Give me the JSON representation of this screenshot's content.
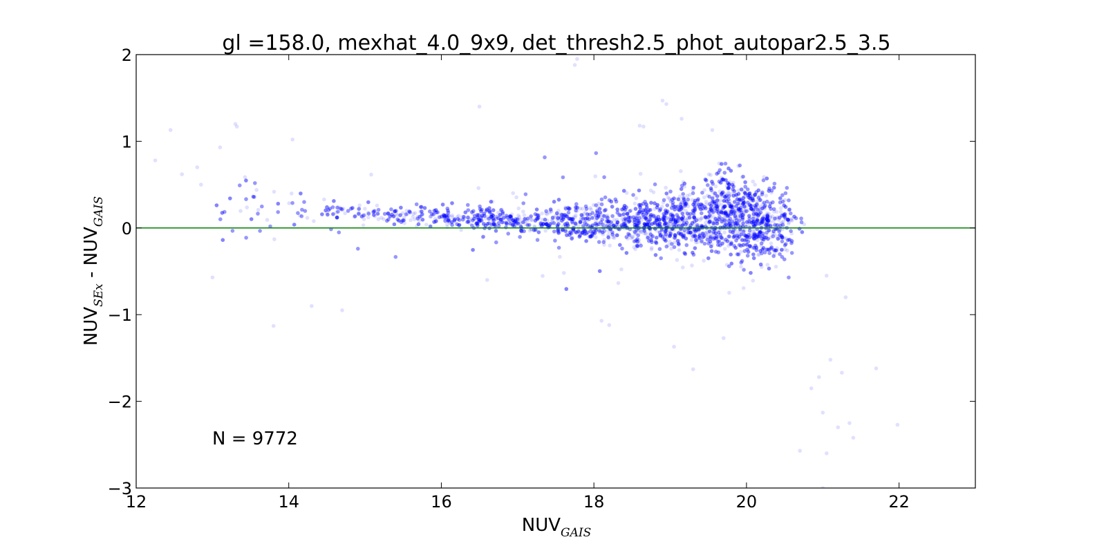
{
  "chart_data": {
    "type": "scatter",
    "title": "gl =158.0, mexhat_4.0_9x9, det_thresh2.5_phot_autopar2.5_3.5",
    "xlabel": {
      "main": "NUV",
      "sub": "GAIS"
    },
    "ylabel": {
      "main1": "NUV",
      "sub1": "SEx",
      "sep": " - ",
      "main2": "NUV",
      "sub2": "GAIS"
    },
    "xlim": [
      12,
      23
    ],
    "ylim": [
      -3,
      2
    ],
    "xticks": [
      12,
      14,
      16,
      18,
      20,
      22
    ],
    "yticks": [
      -3,
      -2,
      -1,
      0,
      1,
      2
    ],
    "xtick_labels": [
      "12",
      "14",
      "16",
      "18",
      "20",
      "22"
    ],
    "ytick_labels": [
      "−3",
      "−2",
      "−1",
      "0",
      "1",
      "2"
    ],
    "reference_line": {
      "y": 0,
      "color": "#008000"
    },
    "point_color": "#0000ff",
    "point_alpha": 0.12,
    "annotation": "N = 9772",
    "n_points": 9772,
    "series": [
      {
        "trend": [
          {
            "x": 13.5,
            "y_center": 0.25,
            "y_spread": 0.18
          },
          {
            "x": 15.0,
            "y_center": 0.15,
            "y_spread": 0.06
          },
          {
            "x": 16.5,
            "y_center": 0.1,
            "y_spread": 0.06
          },
          {
            "x": 18.0,
            "y_center": 0.05,
            "y_spread": 0.1
          },
          {
            "x": 19.0,
            "y_center": 0.08,
            "y_spread": 0.18
          },
          {
            "x": 19.8,
            "y_center": 0.15,
            "y_spread": 0.25
          },
          {
            "x": 20.5,
            "y_center": 0.0,
            "y_spread": 0.2
          }
        ],
        "outliers": [
          {
            "x": 12.25,
            "y": 0.78
          },
          {
            "x": 12.45,
            "y": 1.13
          },
          {
            "x": 12.6,
            "y": 0.62
          },
          {
            "x": 12.8,
            "y": 0.7
          },
          {
            "x": 12.85,
            "y": 0.5
          },
          {
            "x": 13.1,
            "y": 0.93
          },
          {
            "x": 13.3,
            "y": 1.2
          },
          {
            "x": 13.32,
            "y": 1.17
          },
          {
            "x": 13.0,
            "y": -0.57
          },
          {
            "x": 13.8,
            "y": -1.13
          },
          {
            "x": 14.05,
            "y": 1.02
          },
          {
            "x": 14.3,
            "y": -0.9
          },
          {
            "x": 14.7,
            "y": -0.95
          },
          {
            "x": 16.5,
            "y": 1.4
          },
          {
            "x": 16.6,
            "y": -0.6
          },
          {
            "x": 17.75,
            "y": 1.88
          },
          {
            "x": 17.78,
            "y": 1.95
          },
          {
            "x": 18.9,
            "y": 1.47
          },
          {
            "x": 18.95,
            "y": 1.43
          },
          {
            "x": 19.15,
            "y": 1.26
          },
          {
            "x": 18.6,
            "y": 1.18
          },
          {
            "x": 18.65,
            "y": 1.17
          },
          {
            "x": 18.1,
            "y": -1.07
          },
          {
            "x": 18.2,
            "y": -1.12
          },
          {
            "x": 19.05,
            "y": -1.37
          },
          {
            "x": 19.3,
            "y": -1.63
          },
          {
            "x": 19.7,
            "y": -1.27
          },
          {
            "x": 20.7,
            "y": -2.57
          },
          {
            "x": 20.85,
            "y": -1.85
          },
          {
            "x": 20.95,
            "y": -1.72
          },
          {
            "x": 21.0,
            "y": -2.13
          },
          {
            "x": 21.1,
            "y": -1.52
          },
          {
            "x": 21.25,
            "y": -1.67
          },
          {
            "x": 21.05,
            "y": -2.6
          },
          {
            "x": 21.2,
            "y": -2.3
          },
          {
            "x": 21.35,
            "y": -2.25
          },
          {
            "x": 21.4,
            "y": -2.42
          },
          {
            "x": 21.3,
            "y": -0.8
          },
          {
            "x": 21.7,
            "y": -1.62
          },
          {
            "x": 21.98,
            "y": -2.27
          },
          {
            "x": 21.0,
            "y": -3.0
          },
          {
            "x": 21.05,
            "y": -0.55
          }
        ]
      }
    ]
  }
}
